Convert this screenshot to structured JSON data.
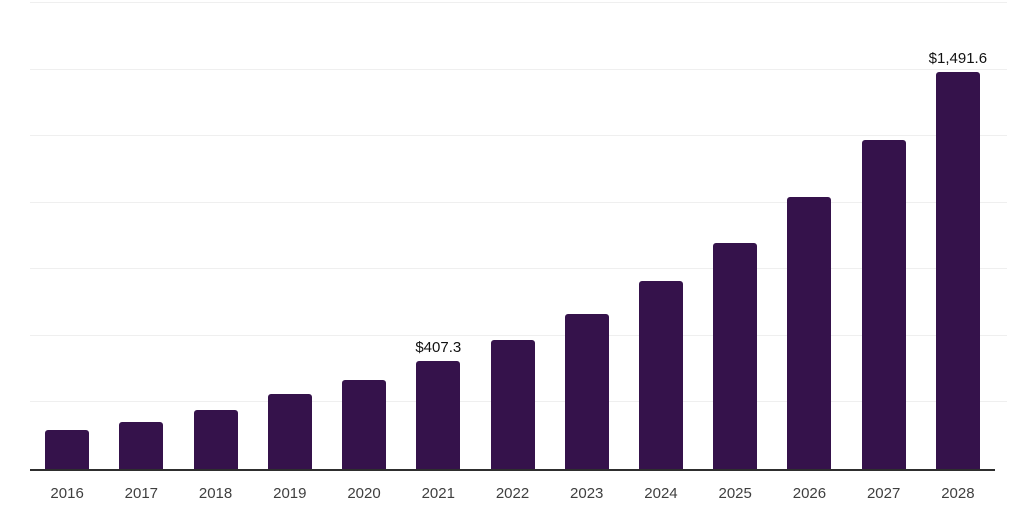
{
  "chart_data": {
    "type": "bar",
    "title": "",
    "xlabel": "",
    "ylabel": "",
    "categories": [
      "2016",
      "2017",
      "2018",
      "2019",
      "2020",
      "2021",
      "2022",
      "2023",
      "2024",
      "2025",
      "2026",
      "2027",
      "2028"
    ],
    "values": [
      147,
      176,
      220,
      282,
      335,
      407.3,
      486,
      583,
      706,
      848,
      1021,
      1237,
      1491.6
    ],
    "labeled_points": [
      {
        "year": "2021",
        "label": "$407.3"
      },
      {
        "year": "2028",
        "label": "$1,491.6"
      }
    ],
    "ylim": [
      0,
      1750
    ],
    "grid_interval": 250,
    "grid": "horizontal-only",
    "legend_position": "none",
    "y_axis_labels_visible": false,
    "colors": {
      "bar": "#35124B",
      "gridline": "#efefef",
      "axis_line": "#2e2e2e",
      "tick_label": "#3f3f3f",
      "data_label": "#111111",
      "background": "#ffffff"
    }
  }
}
